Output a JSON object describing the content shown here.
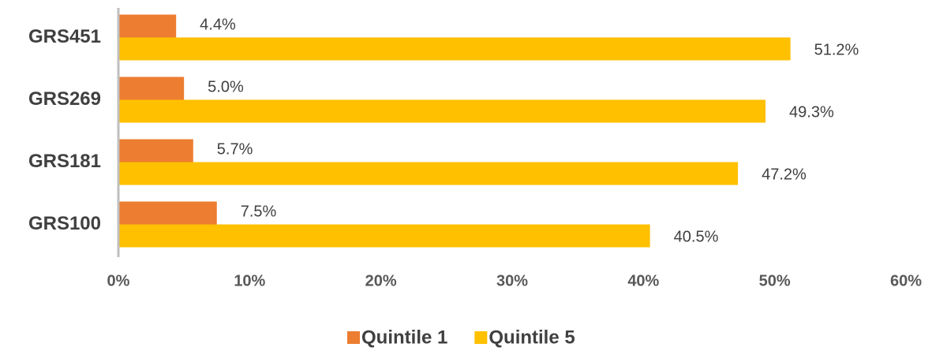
{
  "chart_data": {
    "type": "hbar",
    "categories": [
      "GRS451",
      "GRS269",
      "GRS181",
      "GRS100"
    ],
    "series": [
      {
        "name": "Quintile 1",
        "color": "#ed7d31",
        "values": [
          4.4,
          5.0,
          5.7,
          7.5
        ],
        "value_labels": [
          "4.4%",
          "5.0%",
          "5.7%",
          "7.5%"
        ]
      },
      {
        "name": "Quintile 5",
        "color": "#ffc000",
        "values": [
          51.2,
          49.3,
          47.2,
          40.5
        ],
        "value_labels": [
          "51.2%",
          "49.3%",
          "47.2%",
          "40.5%"
        ]
      }
    ],
    "xlim": [
      0,
      60
    ],
    "xticks": [
      {
        "value": 0,
        "label": "0%"
      },
      {
        "value": 10,
        "label": "10%"
      },
      {
        "value": 20,
        "label": "20%"
      },
      {
        "value": 30,
        "label": "30%"
      },
      {
        "value": 40,
        "label": "40%"
      },
      {
        "value": 50,
        "label": "50%"
      },
      {
        "value": 60,
        "label": "60%"
      }
    ],
    "legend": "bottom"
  }
}
